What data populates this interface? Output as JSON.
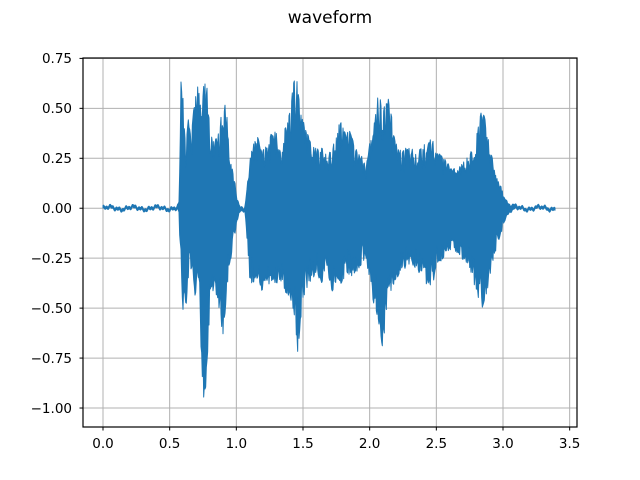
{
  "figure": {
    "title": "waveform"
  },
  "chart_data": {
    "type": "line",
    "title": "waveform",
    "xlabel": "",
    "ylabel": "",
    "legend": false,
    "grid": true,
    "line_color": "#1f77b4",
    "grid_color": "#b0b0b0",
    "spine_color": "#000000",
    "background_color": "#ffffff",
    "xlim": [
      -0.15,
      3.555
    ],
    "ylim": [
      -1.095,
      0.752
    ],
    "xticks": [
      0.0,
      0.5,
      1.0,
      1.5,
      2.0,
      2.5,
      3.0,
      3.5
    ],
    "xtick_labels": [
      "0.0",
      "0.5",
      "1.0",
      "1.5",
      "2.0",
      "2.5",
      "3.0",
      "3.5"
    ],
    "yticks": [
      0.75,
      0.5,
      0.25,
      0.0,
      -0.25,
      -0.5,
      -0.75,
      -1.0
    ],
    "ytick_labels": [
      "0.75",
      "0.50",
      "0.25",
      "0.00",
      "−0.25",
      "−0.50",
      "−0.75",
      "−1.00"
    ],
    "duration_s": 3.39,
    "peak_max": 0.67,
    "peak_min": -1.0,
    "series": [
      {
        "name": "waveform",
        "envelope_keypoints_t_upper_lower": [
          [
            0.0,
            0.02,
            -0.02
          ],
          [
            0.1,
            0.025,
            -0.02
          ],
          [
            0.2,
            0.02,
            -0.025
          ],
          [
            0.3,
            0.025,
            -0.02
          ],
          [
            0.4,
            0.02,
            -0.02
          ],
          [
            0.5,
            0.025,
            -0.025
          ],
          [
            0.55,
            0.03,
            -0.03
          ],
          [
            0.57,
            0.08,
            -0.06
          ],
          [
            0.585,
            0.63,
            -0.3
          ],
          [
            0.6,
            0.55,
            -0.53
          ],
          [
            0.62,
            0.3,
            -0.52
          ],
          [
            0.64,
            0.45,
            -0.35
          ],
          [
            0.66,
            0.35,
            -0.3
          ],
          [
            0.68,
            0.5,
            -0.42
          ],
          [
            0.7,
            0.6,
            -0.45
          ],
          [
            0.72,
            0.62,
            -0.4
          ],
          [
            0.74,
            0.5,
            -0.8
          ],
          [
            0.76,
            0.65,
            -1.0
          ],
          [
            0.78,
            0.6,
            -0.85
          ],
          [
            0.8,
            0.4,
            -0.5
          ],
          [
            0.83,
            0.34,
            -0.4
          ],
          [
            0.86,
            0.36,
            -0.45
          ],
          [
            0.88,
            0.45,
            -0.55
          ],
          [
            0.9,
            0.5,
            -0.63
          ],
          [
            0.92,
            0.52,
            -0.5
          ],
          [
            0.94,
            0.4,
            -0.35
          ],
          [
            0.96,
            0.25,
            -0.25
          ],
          [
            0.98,
            0.15,
            -0.15
          ],
          [
            1.0,
            0.1,
            -0.1
          ],
          [
            1.03,
            0.05,
            -0.05
          ],
          [
            1.06,
            0.04,
            -0.04
          ],
          [
            1.08,
            0.1,
            -0.15
          ],
          [
            1.1,
            0.25,
            -0.35
          ],
          [
            1.13,
            0.32,
            -0.4
          ],
          [
            1.16,
            0.36,
            -0.35
          ],
          [
            1.19,
            0.28,
            -0.42
          ],
          [
            1.22,
            0.31,
            -0.35
          ],
          [
            1.25,
            0.35,
            -0.4
          ],
          [
            1.28,
            0.4,
            -0.35
          ],
          [
            1.31,
            0.36,
            -0.42
          ],
          [
            1.34,
            0.3,
            -0.38
          ],
          [
            1.37,
            0.42,
            -0.42
          ],
          [
            1.4,
            0.48,
            -0.45
          ],
          [
            1.42,
            0.58,
            -0.5
          ],
          [
            1.44,
            0.67,
            -0.55
          ],
          [
            1.46,
            0.62,
            -0.72
          ],
          [
            1.48,
            0.5,
            -0.6
          ],
          [
            1.5,
            0.45,
            -0.45
          ],
          [
            1.53,
            0.38,
            -0.4
          ],
          [
            1.56,
            0.33,
            -0.36
          ],
          [
            1.6,
            0.3,
            -0.32
          ],
          [
            1.64,
            0.3,
            -0.38
          ],
          [
            1.68,
            0.26,
            -0.3
          ],
          [
            1.72,
            0.3,
            -0.45
          ],
          [
            1.76,
            0.4,
            -0.35
          ],
          [
            1.79,
            0.45,
            -0.38
          ],
          [
            1.82,
            0.36,
            -0.35
          ],
          [
            1.85,
            0.39,
            -0.33
          ],
          [
            1.88,
            0.33,
            -0.37
          ],
          [
            1.91,
            0.28,
            -0.3
          ],
          [
            1.94,
            0.26,
            -0.28
          ],
          [
            1.97,
            0.23,
            -0.26
          ],
          [
            2.0,
            0.32,
            -0.35
          ],
          [
            2.03,
            0.4,
            -0.48
          ],
          [
            2.06,
            0.55,
            -0.55
          ],
          [
            2.08,
            0.58,
            -0.65
          ],
          [
            2.1,
            0.5,
            -0.7
          ],
          [
            2.12,
            0.52,
            -0.55
          ],
          [
            2.14,
            0.55,
            -0.45
          ],
          [
            2.17,
            0.44,
            -0.4
          ],
          [
            2.2,
            0.32,
            -0.36
          ],
          [
            2.24,
            0.28,
            -0.3
          ],
          [
            2.28,
            0.31,
            -0.3
          ],
          [
            2.32,
            0.3,
            -0.28
          ],
          [
            2.36,
            0.28,
            -0.32
          ],
          [
            2.4,
            0.31,
            -0.35
          ],
          [
            2.44,
            0.34,
            -0.4
          ],
          [
            2.47,
            0.35,
            -0.38
          ],
          [
            2.5,
            0.3,
            -0.3
          ],
          [
            2.54,
            0.26,
            -0.26
          ],
          [
            2.58,
            0.23,
            -0.22
          ],
          [
            2.62,
            0.2,
            -0.2
          ],
          [
            2.66,
            0.2,
            -0.22
          ],
          [
            2.7,
            0.23,
            -0.26
          ],
          [
            2.75,
            0.26,
            -0.3
          ],
          [
            2.8,
            0.36,
            -0.42
          ],
          [
            2.84,
            0.5,
            -0.5
          ],
          [
            2.87,
            0.44,
            -0.45
          ],
          [
            2.9,
            0.3,
            -0.35
          ],
          [
            2.93,
            0.22,
            -0.25
          ],
          [
            2.96,
            0.15,
            -0.18
          ],
          [
            3.0,
            0.1,
            -0.1
          ],
          [
            3.05,
            0.06,
            -0.06
          ],
          [
            3.1,
            0.04,
            -0.05
          ],
          [
            3.15,
            0.03,
            -0.03
          ],
          [
            3.2,
            0.04,
            -0.03
          ],
          [
            3.25,
            0.03,
            -0.025
          ],
          [
            3.3,
            0.025,
            -0.02
          ],
          [
            3.39,
            0.02,
            -0.02
          ]
        ]
      }
    ]
  }
}
